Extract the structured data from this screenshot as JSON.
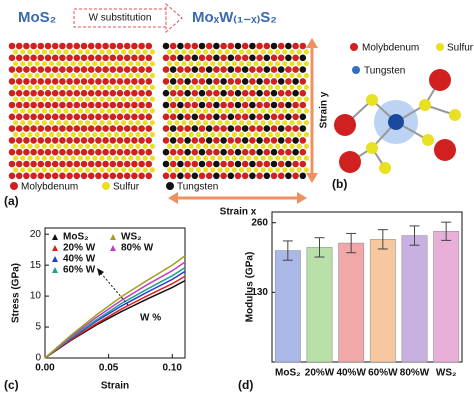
{
  "header": {
    "left": "MoS₂",
    "arrow": "W substitution",
    "right": "MoₓW₍₁₋ₓ₎S₂"
  },
  "panel_a": {
    "label": "(a)",
    "legend": [
      "Molybdenum",
      "Sulfur",
      "Tungsten"
    ],
    "strain_x": "Strain x",
    "strain_y": "Strain y"
  },
  "panel_b": {
    "label": "(b)",
    "legend": [
      "Molybdenum",
      "Sulfur",
      "Tungsten"
    ]
  },
  "chart_data": [
    {
      "type": "line",
      "label": "(c)",
      "xlabel": "Strain",
      "ylabel": "Stress (GPa)",
      "annotation": "W %",
      "x": [
        0,
        0.02,
        0.04,
        0.06,
        0.08,
        0.1,
        0.11
      ],
      "xlim": [
        0,
        0.11
      ],
      "xticks": [
        {
          "value": 0,
          "label": "0.00"
        },
        {
          "value": 0.05,
          "label": "0.05"
        },
        {
          "value": 0.1,
          "label": "0.10"
        }
      ],
      "ylim": [
        0,
        21
      ],
      "yticks": [
        0,
        5,
        10,
        15,
        20
      ],
      "series": [
        {
          "name": "MoS₂",
          "color": "#111111",
          "values": [
            0,
            2.8,
            5.3,
            7.5,
            9.5,
            11.4,
            12.5
          ]
        },
        {
          "name": "20% W",
          "color": "#e02020",
          "values": [
            0,
            2.9,
            5.5,
            7.9,
            10.0,
            12.0,
            13.2
          ]
        },
        {
          "name": "40% W",
          "color": "#2040d0",
          "values": [
            0,
            3.1,
            5.9,
            8.4,
            10.6,
            12.7,
            14
          ]
        },
        {
          "name": "60% W",
          "color": "#20a090",
          "values": [
            0,
            3.2,
            6.1,
            8.8,
            11.1,
            13.3,
            14.6
          ]
        },
        {
          "name": "80% W",
          "color": "#c040c0",
          "values": [
            0,
            3.4,
            6.5,
            9.3,
            11.8,
            14.1,
            15.5
          ]
        },
        {
          "name": "WS₂",
          "color": "#a0a020",
          "values": [
            0,
            3.6,
            6.9,
            9.9,
            12.5,
            15.0,
            16.5
          ]
        }
      ]
    },
    {
      "type": "bar",
      "label": "(d)",
      "ylabel": "Modulus (GPa)",
      "categories": [
        "MoS₂",
        "20%W",
        "40%W",
        "60%W",
        "80%W",
        "WS₂"
      ],
      "values": [
        208,
        214,
        222,
        229,
        236,
        244
      ],
      "errors": [
        18,
        18,
        18,
        18,
        18,
        17
      ],
      "colors": [
        "#aab8e8",
        "#b8e0a8",
        "#f0a8a8",
        "#f5c8a0",
        "#c8b0e0",
        "#e8b0d8"
      ],
      "ylim": [
        0,
        280
      ],
      "yticks": [
        130,
        260
      ]
    }
  ]
}
